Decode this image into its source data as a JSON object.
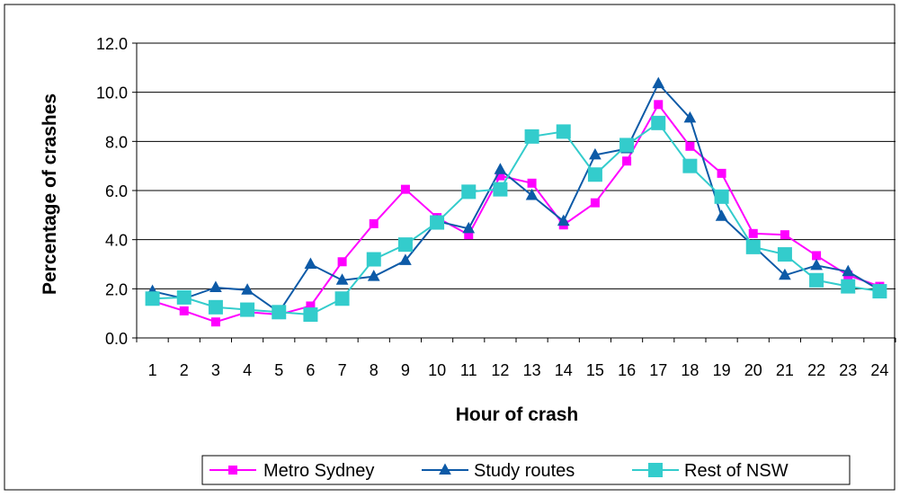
{
  "chart_data": {
    "type": "line",
    "title": "",
    "xlabel": "Hour of crash",
    "ylabel": "Percentage of crashes",
    "categories": [
      "1",
      "2",
      "3",
      "4",
      "5",
      "6",
      "7",
      "8",
      "9",
      "10",
      "11",
      "12",
      "13",
      "14",
      "15",
      "16",
      "17",
      "18",
      "19",
      "20",
      "21",
      "22",
      "23",
      "24"
    ],
    "yticks": [
      "0.0",
      "2.0",
      "4.0",
      "6.0",
      "8.0",
      "10.0",
      "12.0"
    ],
    "ylim": [
      0,
      12
    ],
    "grid": true,
    "legend_position": "bottom",
    "series": [
      {
        "name": "Metro Sydney",
        "color": "#ff00ff",
        "marker": "square",
        "values": [
          1.5,
          1.1,
          0.65,
          1.05,
          0.95,
          1.3,
          3.1,
          4.65,
          6.05,
          4.9,
          4.2,
          6.6,
          6.3,
          4.6,
          5.5,
          7.2,
          9.5,
          7.8,
          6.7,
          4.25,
          4.2,
          3.35,
          2.55,
          2.1
        ]
      },
      {
        "name": "Study routes",
        "color": "#0d5aa7",
        "marker": "triangle",
        "values": [
          1.9,
          1.6,
          2.05,
          1.95,
          1.05,
          3.0,
          2.35,
          2.5,
          3.15,
          4.75,
          4.45,
          6.85,
          5.8,
          4.75,
          7.45,
          7.7,
          10.35,
          8.95,
          4.95,
          3.75,
          2.55,
          2.95,
          2.7,
          1.95
        ]
      },
      {
        "name": "Rest of NSW",
        "color": "#33cccc",
        "marker": "square-large",
        "values": [
          1.6,
          1.65,
          1.25,
          1.15,
          1.05,
          0.95,
          1.6,
          3.2,
          3.8,
          4.7,
          5.95,
          6.05,
          8.2,
          8.4,
          6.65,
          7.85,
          8.75,
          7.0,
          5.75,
          3.7,
          3.4,
          2.35,
          2.1,
          1.9
        ]
      }
    ]
  }
}
